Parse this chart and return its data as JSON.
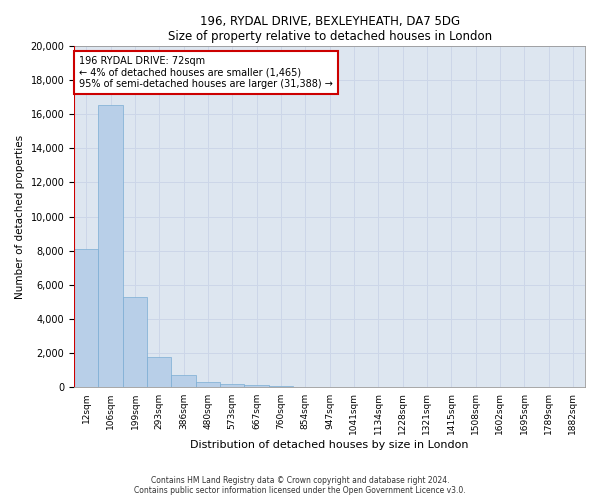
{
  "title1": "196, RYDAL DRIVE, BEXLEYHEATH, DA7 5DG",
  "title2": "Size of property relative to detached houses in London",
  "xlabel": "Distribution of detached houses by size in London",
  "ylabel": "Number of detached properties",
  "categories": [
    "12sqm",
    "106sqm",
    "199sqm",
    "293sqm",
    "386sqm",
    "480sqm",
    "573sqm",
    "667sqm",
    "760sqm",
    "854sqm",
    "947sqm",
    "1041sqm",
    "1134sqm",
    "1228sqm",
    "1321sqm",
    "1415sqm",
    "1508sqm",
    "1602sqm",
    "1695sqm",
    "1789sqm",
    "1882sqm"
  ],
  "values": [
    8100,
    16500,
    5300,
    1800,
    700,
    300,
    200,
    150,
    100,
    0,
    0,
    0,
    0,
    0,
    0,
    0,
    0,
    0,
    0,
    0,
    0
  ],
  "bar_color": "#b8cfe8",
  "bar_edge_color": "#7aadd4",
  "highlight_color": "#cc0000",
  "annotation_title": "196 RYDAL DRIVE: 72sqm",
  "annotation_line1": "← 4% of detached houses are smaller (1,465)",
  "annotation_line2": "95% of semi-detached houses are larger (31,388) →",
  "annotation_box_color": "#ffffff",
  "annotation_box_edge": "#cc0000",
  "ylim": [
    0,
    20000
  ],
  "yticks": [
    0,
    2000,
    4000,
    6000,
    8000,
    10000,
    12000,
    14000,
    16000,
    18000,
    20000
  ],
  "grid_color": "#ccd6e8",
  "bg_color": "#dde6f0",
  "fig_bg_color": "#ffffff",
  "footer1": "Contains HM Land Registry data © Crown copyright and database right 2024.",
  "footer2": "Contains public sector information licensed under the Open Government Licence v3.0."
}
